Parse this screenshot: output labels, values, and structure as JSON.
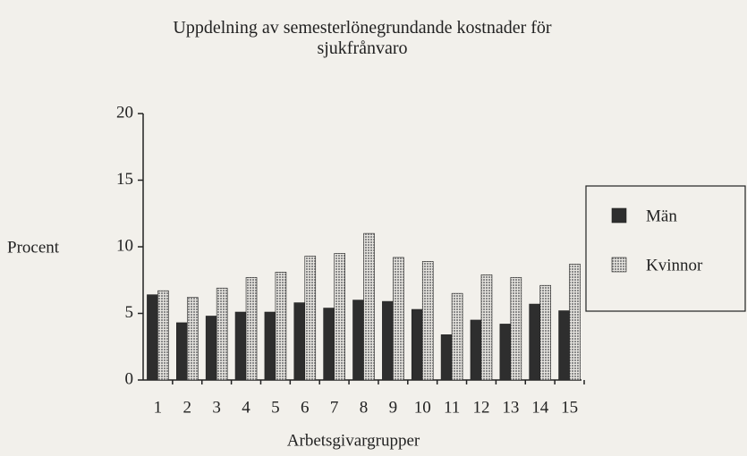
{
  "chart_data": {
    "type": "bar",
    "title": "Uppdelning av semesterlönegrundande kostnader för sjukfrånvaro",
    "y_label": "Procent",
    "x_label": "Arbetsgivargrupper",
    "categories": [
      "1",
      "2",
      "3",
      "4",
      "5",
      "6",
      "7",
      "8",
      "9",
      "10",
      "11",
      "12",
      "13",
      "14",
      "15"
    ],
    "series": [
      {
        "name": "Män",
        "color": "#2e2e2e",
        "values": [
          6.4,
          4.3,
          4.8,
          5.1,
          5.1,
          5.8,
          5.4,
          6.0,
          5.9,
          5.3,
          3.4,
          4.5,
          4.2,
          5.7,
          5.2
        ]
      },
      {
        "name": "Kvinnor",
        "color": "#8a8a8a",
        "values": [
          6.7,
          6.2,
          6.9,
          7.7,
          8.1,
          9.3,
          9.5,
          11.0,
          9.2,
          8.9,
          6.5,
          7.9,
          7.7,
          7.1,
          8.7
        ]
      }
    ],
    "ylim": [
      0,
      20
    ],
    "yticks": [
      0,
      5,
      10,
      15,
      20
    ],
    "grid": false,
    "legend": "right"
  }
}
